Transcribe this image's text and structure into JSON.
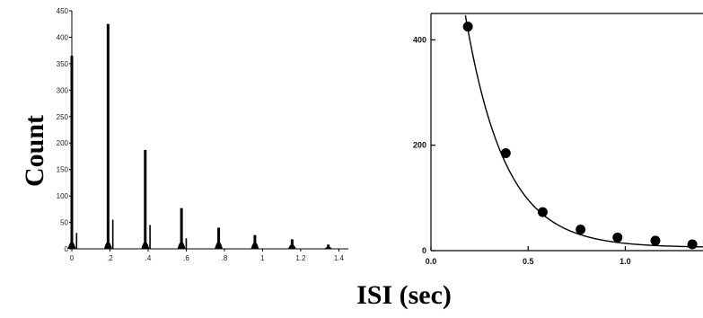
{
  "ylabel": "Count",
  "xlabel": "ISI (sec)",
  "chart_data": [
    {
      "type": "bar",
      "ylim": [
        0,
        450
      ],
      "xlim": [
        0,
        1.45
      ],
      "x_ticks": [
        0,
        0.2,
        0.4,
        0.6,
        0.8,
        1.0,
        1.2,
        1.4
      ],
      "x_tick_labels": [
        "0",
        ".2",
        ".4",
        ".6",
        ".8",
        "1",
        "1.2",
        "1.4"
      ],
      "y_ticks": [
        0,
        50,
        100,
        150,
        200,
        250,
        300,
        350,
        400,
        450
      ],
      "y_tick_labels": [
        "0",
        "50",
        "100",
        "150",
        "200",
        "250",
        "300",
        "350",
        "400",
        "450"
      ],
      "peaks": [
        {
          "x": 0.0,
          "value": 365
        },
        {
          "x": 0.19,
          "value": 425
        },
        {
          "x": 0.385,
          "value": 187
        },
        {
          "x": 0.575,
          "value": 77
        },
        {
          "x": 0.77,
          "value": 40
        },
        {
          "x": 0.96,
          "value": 26
        },
        {
          "x": 1.155,
          "value": 18
        },
        {
          "x": 1.345,
          "value": 8
        }
      ],
      "secondary_peaks": [
        {
          "x": 0.025,
          "value": 30
        },
        {
          "x": 0.215,
          "value": 55
        },
        {
          "x": 0.41,
          "value": 45
        },
        {
          "x": 0.6,
          "value": 20
        }
      ]
    },
    {
      "type": "scatter",
      "xlim": [
        0,
        1.4
      ],
      "ylim": [
        0,
        450
      ],
      "x_ticks": [
        0.0,
        0.5,
        1.0
      ],
      "x_tick_labels": [
        "0.0",
        "0.5",
        "1.0"
      ],
      "y_ticks": [
        0,
        200,
        400
      ],
      "y_tick_labels": [
        "0",
        "200",
        "400"
      ],
      "points": [
        {
          "x": 0.19,
          "y": 425
        },
        {
          "x": 0.385,
          "y": 185
        },
        {
          "x": 0.575,
          "y": 73
        },
        {
          "x": 0.77,
          "y": 40
        },
        {
          "x": 0.96,
          "y": 25
        },
        {
          "x": 1.155,
          "y": 19
        },
        {
          "x": 1.345,
          "y": 12
        }
      ],
      "fit_curve": {
        "model": "exponential",
        "A": 1050,
        "k": 4.9,
        "C": 6
      }
    }
  ]
}
